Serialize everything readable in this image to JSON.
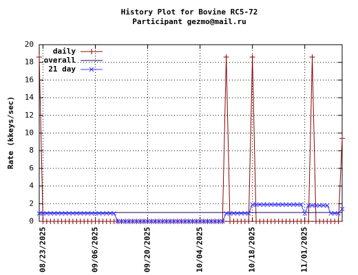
{
  "chart_data": {
    "type": "line",
    "title": "History Plot for Bovine RC5-72",
    "subtitle": "Participant gezmo@mail.ru",
    "y_label": "Rate (kkeys/sec)",
    "x": [
      "2025-08-22",
      "2025-08-23",
      "2025-08-24",
      "2025-08-25",
      "2025-08-26",
      "2025-08-27",
      "2025-08-28",
      "2025-08-29",
      "2025-08-30",
      "2025-08-31",
      "2025-09-01",
      "2025-09-02",
      "2025-09-03",
      "2025-09-04",
      "2025-09-05",
      "2025-09-06",
      "2025-09-07",
      "2025-09-08",
      "2025-09-09",
      "2025-09-10",
      "2025-09-11",
      "2025-09-12",
      "2025-09-13",
      "2025-09-14",
      "2025-09-15",
      "2025-09-16",
      "2025-09-17",
      "2025-09-18",
      "2025-09-19",
      "2025-09-20",
      "2025-09-21",
      "2025-09-22",
      "2025-09-23",
      "2025-09-24",
      "2025-09-25",
      "2025-09-26",
      "2025-09-27",
      "2025-09-28",
      "2025-09-29",
      "2025-09-30",
      "2025-10-01",
      "2025-10-02",
      "2025-10-03",
      "2025-10-04",
      "2025-10-05",
      "2025-10-06",
      "2025-10-07",
      "2025-10-08",
      "2025-10-09",
      "2025-10-10",
      "2025-10-11",
      "2025-10-12",
      "2025-10-13",
      "2025-10-14",
      "2025-10-15",
      "2025-10-16",
      "2025-10-17",
      "2025-10-18",
      "2025-10-19",
      "2025-10-20",
      "2025-10-21",
      "2025-10-22",
      "2025-10-23",
      "2025-10-24",
      "2025-10-25",
      "2025-10-26",
      "2025-10-27",
      "2025-10-28",
      "2025-10-29",
      "2025-10-30",
      "2025-10-31",
      "2025-11-01",
      "2025-11-02",
      "2025-11-03",
      "2025-11-04",
      "2025-11-05",
      "2025-11-06",
      "2025-11-07",
      "2025-11-08",
      "2025-11-09",
      "2025-11-10",
      "2025-11-11"
    ],
    "series": [
      {
        "name": "daily",
        "color": "#8b0000",
        "marker": "plus",
        "values": [
          18.6,
          0,
          0,
          0,
          0,
          0,
          0,
          0,
          0,
          0,
          0,
          0,
          0,
          0,
          0,
          0,
          0,
          0,
          0,
          0,
          0,
          0,
          0,
          0,
          0,
          0,
          0,
          0,
          0,
          0,
          0,
          0,
          0,
          0,
          0,
          0,
          0,
          0,
          0,
          0,
          0,
          0,
          0,
          0,
          0,
          0,
          0,
          0,
          0,
          0,
          18.6,
          0,
          0,
          0,
          0,
          0,
          0,
          18.6,
          0,
          0,
          0,
          0,
          0,
          0,
          0,
          0,
          0,
          0,
          0,
          0,
          0,
          0,
          0,
          18.6,
          0,
          0,
          0,
          0,
          0,
          0,
          0,
          9.4
        ]
      },
      {
        "name": "overall",
        "color": "#1a0060",
        "marker": "none",
        "values": [
          1,
          1,
          1,
          1,
          1,
          1,
          1,
          1,
          1,
          1,
          1,
          1,
          1,
          1,
          1,
          1,
          1,
          1,
          1,
          1,
          1,
          1,
          1,
          1,
          1,
          1,
          1,
          1,
          1,
          1,
          1,
          1,
          1,
          1,
          1,
          1,
          1,
          1,
          1,
          1,
          1,
          1,
          1,
          1,
          1,
          1,
          1,
          1,
          1,
          1,
          1,
          1,
          1,
          1,
          1,
          1,
          1,
          1,
          1,
          1,
          1,
          1,
          1,
          1,
          1,
          1,
          1,
          1,
          1,
          1,
          1,
          1,
          1,
          1,
          1,
          1,
          1,
          1,
          1,
          1,
          1,
          1
        ]
      },
      {
        "name": "21 day",
        "color": "#3838ff",
        "marker": "cross",
        "values": [
          0.9,
          0.9,
          0.9,
          0.9,
          0.9,
          0.9,
          0.9,
          0.9,
          0.9,
          0.9,
          0.9,
          0.9,
          0.9,
          0.9,
          0.9,
          0.9,
          0.9,
          0.9,
          0.9,
          0.9,
          0.9,
          0,
          0,
          0,
          0,
          0,
          0,
          0,
          0,
          0,
          0,
          0,
          0,
          0,
          0,
          0,
          0,
          0,
          0,
          0,
          0,
          0,
          0,
          0,
          0,
          0,
          0,
          0,
          0,
          0,
          0.9,
          0.9,
          0.9,
          0.9,
          0.9,
          0.9,
          0.9,
          1.9,
          1.9,
          1.9,
          1.9,
          1.9,
          1.9,
          1.9,
          1.9,
          1.9,
          1.9,
          1.9,
          1.9,
          1.9,
          1.9,
          0.9,
          1.8,
          1.8,
          1.8,
          1.8,
          1.8,
          1.8,
          0.9,
          0.9,
          0.9,
          1.4
        ]
      }
    ],
    "xlim": [
      "2025-08-22",
      "2025-11-11"
    ],
    "xticks": [
      {
        "value": "2025-08-23",
        "label": "08/23/2025"
      },
      {
        "value": "2025-09-06",
        "label": "09/06/2025"
      },
      {
        "value": "2025-09-20",
        "label": "09/20/2025"
      },
      {
        "value": "2025-10-04",
        "label": "10/04/2025"
      },
      {
        "value": "2025-10-18",
        "label": "10/18/2025"
      },
      {
        "value": "2025-11-01",
        "label": "11/01/2025"
      }
    ],
    "ylim": [
      0,
      20
    ],
    "yticks": [
      0,
      2,
      4,
      6,
      8,
      10,
      12,
      14,
      16,
      18,
      20
    ],
    "grid": true,
    "legend": "top-left"
  }
}
